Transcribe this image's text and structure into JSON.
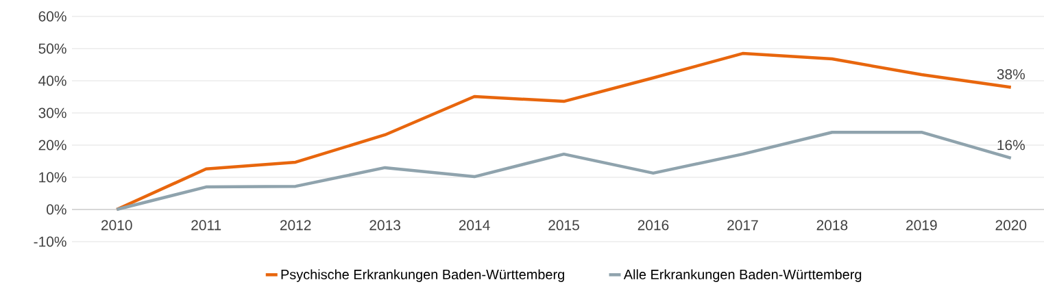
{
  "chart_data": {
    "type": "line",
    "categories": [
      "2010",
      "2011",
      "2012",
      "2013",
      "2014",
      "2015",
      "2016",
      "2017",
      "2018",
      "2019",
      "2020"
    ],
    "series": [
      {
        "name": "Psychische Erkrankungen Baden-Württemberg",
        "color": "#e8660d",
        "values": [
          0,
          12.6,
          14.7,
          23.2,
          35.1,
          33.6,
          40.9,
          48.5,
          46.8,
          41.9,
          38
        ],
        "value_labels": [
          null,
          null,
          null,
          null,
          null,
          null,
          null,
          null,
          null,
          null,
          "38%"
        ]
      },
      {
        "name": "Alle Erkrankungen Baden-Württemberg",
        "color": "#8fa3ad",
        "values": [
          0,
          7.0,
          7.2,
          13.0,
          10.2,
          17.2,
          11.3,
          17.2,
          24.0,
          24.0,
          16
        ],
        "value_labels": [
          null,
          null,
          null,
          null,
          null,
          null,
          null,
          null,
          null,
          null,
          "16%"
        ]
      }
    ],
    "ylim": [
      -10,
      60
    ],
    "yticks": [
      {
        "value": -10,
        "label": "-10%"
      },
      {
        "value": 0,
        "label": "0%"
      },
      {
        "value": 10,
        "label": "10%"
      },
      {
        "value": 20,
        "label": "20%"
      },
      {
        "value": 30,
        "label": "30%"
      },
      {
        "value": 40,
        "label": "40%"
      },
      {
        "value": 50,
        "label": "50%"
      },
      {
        "value": 60,
        "label": "60%"
      }
    ],
    "grid": "y",
    "legend": "bottom",
    "marker": "none",
    "line_style": "solid"
  }
}
